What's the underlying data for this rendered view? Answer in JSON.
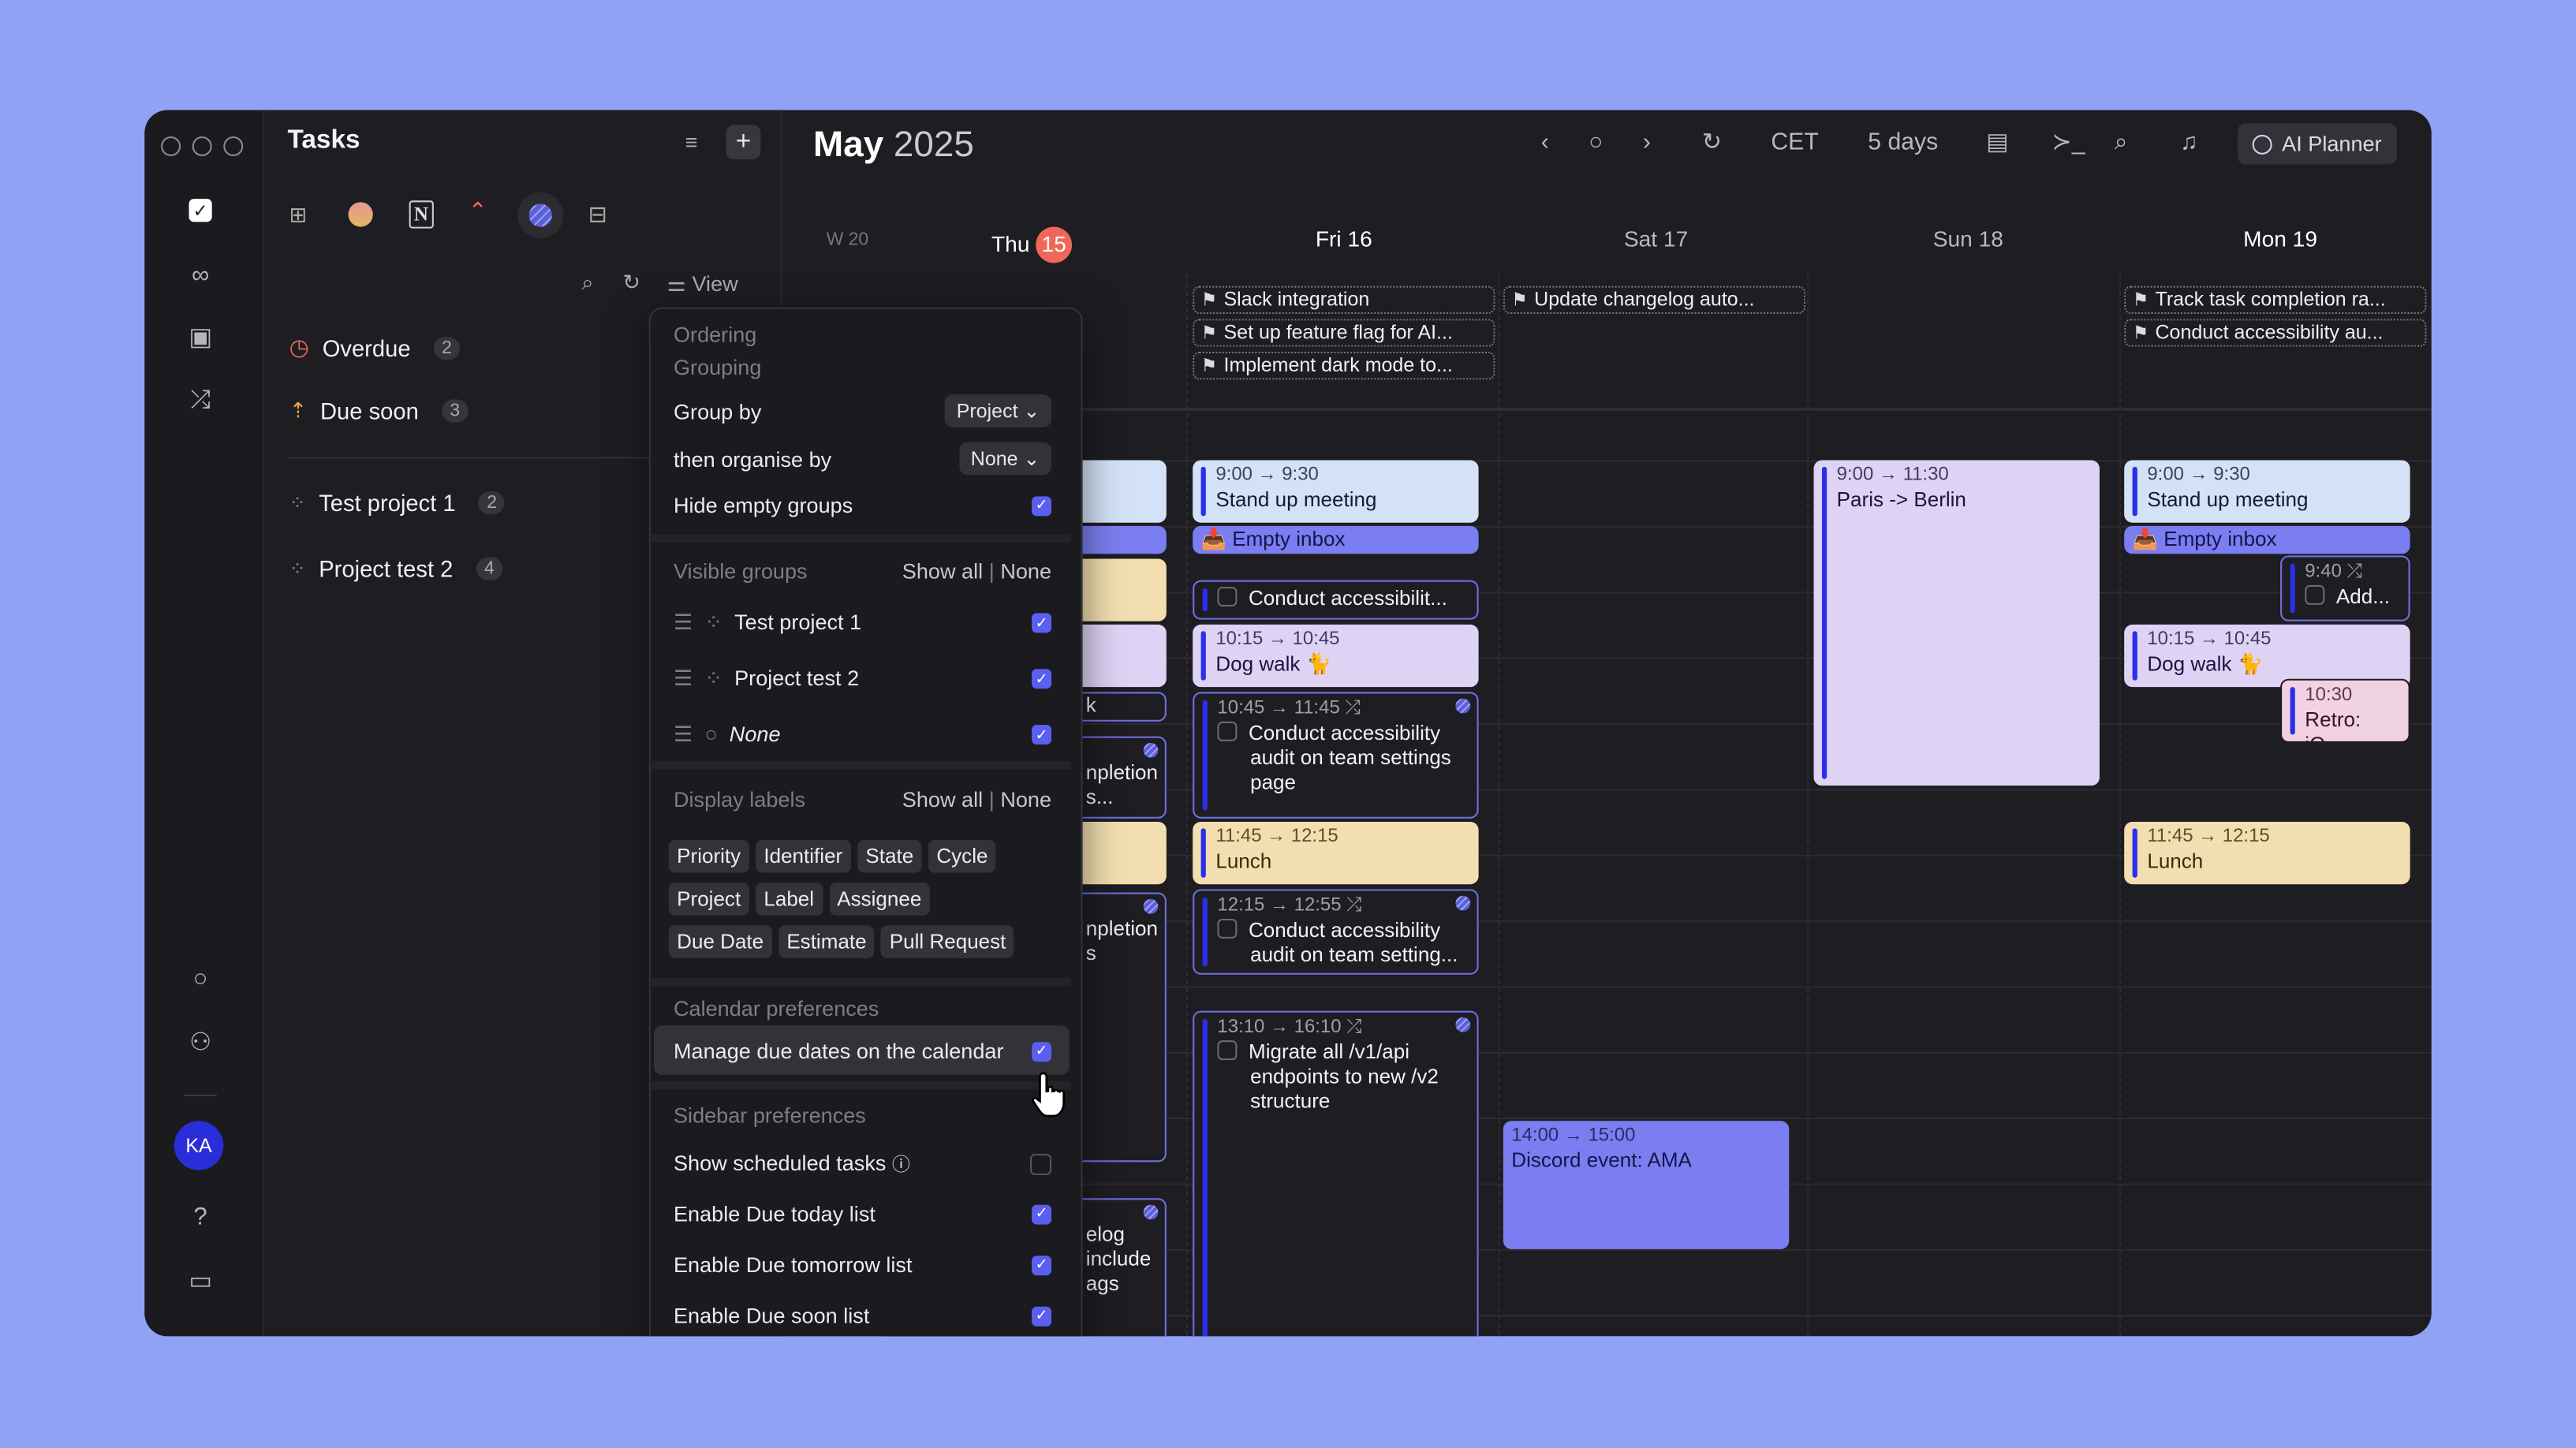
{
  "window": {
    "traffic_lights": 3
  },
  "rail": {
    "avatar_initials": "KA",
    "avatar_color": "#2a2ed8"
  },
  "tasks": {
    "title": "Tasks",
    "integrations": [
      "apps-grid",
      "gradient-circle",
      "notion",
      "clickup",
      "linear",
      "widgets"
    ],
    "view_label": "View",
    "smart_lists": [
      {
        "label": "Overdue",
        "count": "2",
        "icon": "clock",
        "color": "#f06a5a"
      },
      {
        "label": "Due soon",
        "count": "3",
        "icon": "rocket",
        "color": "#f0a040"
      }
    ],
    "projects": [
      {
        "label": "Test project 1",
        "count": "2"
      },
      {
        "label": "Project test 2",
        "count": "4"
      }
    ]
  },
  "calendar": {
    "month": "May",
    "year": "2025",
    "timezone": "CET",
    "range": "5 days",
    "ai_planner": "AI Planner",
    "week": "W 20",
    "days": [
      {
        "label": "Thu",
        "date": "15",
        "today": true
      },
      {
        "label": "Fri 16"
      },
      {
        "label": "Sat 17"
      },
      {
        "label": "Sun 18"
      },
      {
        "label": "Mon 19"
      }
    ],
    "all_day": {
      "fri": [
        "Slack integration",
        "Set up feature flag for AI...",
        "Implement dark mode to..."
      ],
      "sat": [
        "Update changelog auto..."
      ],
      "mon": [
        "Track task completion ra...",
        "Conduct accessibility au..."
      ]
    },
    "events": {
      "thu": [
        "k mod...",
        "npletion",
        "s...",
        "npletion",
        "s",
        "elog",
        "include",
        "ags"
      ],
      "fri": [
        {
          "time": "9:00 → 9:30",
          "title": "Stand up meeting"
        },
        {
          "title": "📥 Empty inbox"
        },
        {
          "title": "Conduct accessibilit..."
        },
        {
          "time": "10:15 → 10:45",
          "title": "Dog walk 🐈"
        },
        {
          "time": "10:45 → 11:45 ⤮",
          "title": "Conduct accessibility audit on team settings page"
        },
        {
          "time": "11:45 → 12:15",
          "title": "Lunch"
        },
        {
          "time": "12:15 → 12:55 ⤮",
          "title": "Conduct accessibility audit on team setting..."
        },
        {
          "time": "13:10 → 16:10 ⤮",
          "title": "Migrate all /v1/api endpoints to new /v2 structure"
        }
      ],
      "sat": [
        {
          "time": "14:00 → 15:00",
          "title": "Discord event: AMA"
        }
      ],
      "sun": [
        {
          "time": "9:00 → 11:30",
          "title": "Paris -> Berlin"
        }
      ],
      "mon": [
        {
          "time": "9:00 → 9:30",
          "title": "Stand up meeting"
        },
        {
          "title": "📥 Empty inbox"
        },
        {
          "time": "9:40 ⤮",
          "title": "Add..."
        },
        {
          "time": "10:15 → 10:45",
          "title": "Dog walk 🐈"
        },
        {
          "time": "10:30",
          "title": "Retro: iO..."
        },
        {
          "time": "11:45 → 12:15",
          "title": "Lunch"
        }
      ]
    }
  },
  "view_menu": {
    "ordering": "Ordering",
    "grouping": "Grouping",
    "group_by": {
      "label": "Group by",
      "value": "Project"
    },
    "then_by": {
      "label": "then organise by",
      "value": "None"
    },
    "hide_empty": {
      "label": "Hide empty groups",
      "checked": true
    },
    "visible_groups": {
      "title": "Visible groups",
      "show_all": "Show all",
      "none": "None",
      "items": [
        {
          "label": "Test project 1",
          "checked": true
        },
        {
          "label": "Project test 2",
          "checked": true
        },
        {
          "label": "None",
          "checked": true
        }
      ]
    },
    "display_labels": {
      "title": "Display labels",
      "show_all": "Show all",
      "none": "None",
      "tags": [
        "Priority",
        "Identifier",
        "State",
        "Cycle",
        "Project",
        "Label",
        "Assignee",
        "Due Date",
        "Estimate",
        "Pull Request"
      ]
    },
    "calendar_prefs": {
      "title": "Calendar preferences",
      "items": [
        {
          "label": "Manage due dates on the calendar",
          "checked": true
        }
      ]
    },
    "sidebar_prefs": {
      "title": "Sidebar preferences",
      "items": [
        {
          "label": "Show scheduled tasks",
          "checked": false
        },
        {
          "label": "Enable Due today list",
          "checked": true
        },
        {
          "label": "Enable Due tomorrow list",
          "checked": true
        },
        {
          "label": "Enable Due soon list",
          "checked": true
        }
      ]
    }
  },
  "colors": {
    "background": "#8fa2f4",
    "window": "#1e1d21",
    "accent": "#5a5ff0",
    "today": "#f0675a",
    "event_blue": "#d3e2f7",
    "event_lavender": "#dfd3f5",
    "event_yellow": "#f2deb0",
    "event_purple": "#7b7ef1",
    "event_pink": "#f0d2e2"
  }
}
